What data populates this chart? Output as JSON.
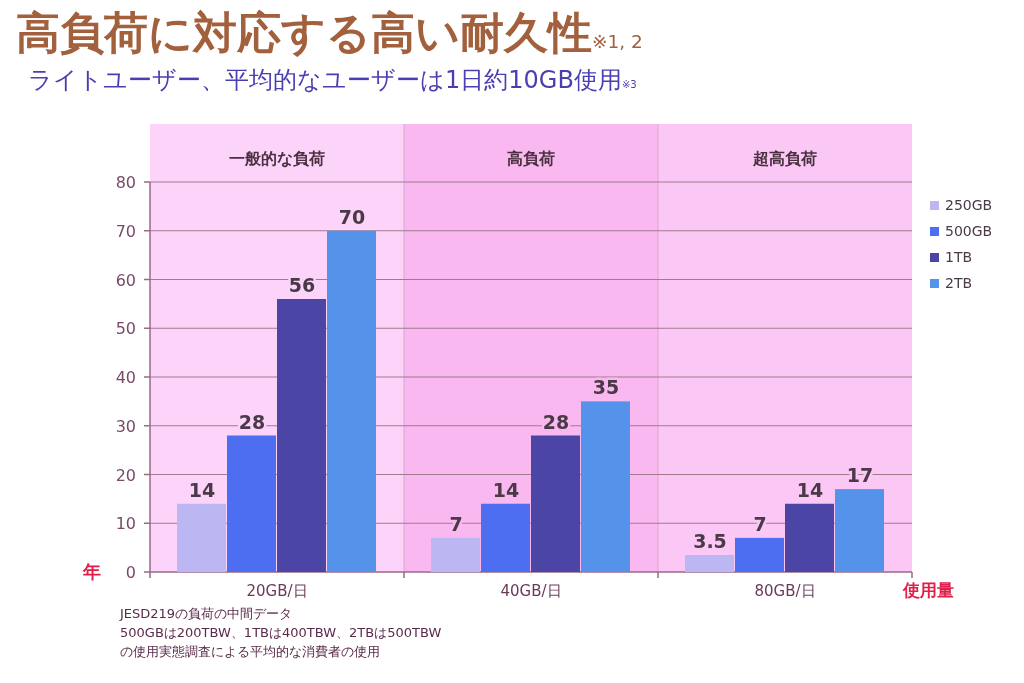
{
  "chart_data": {
    "type": "bar",
    "title": "高負荷に対応する高い耐久性$_{※1, 2}$",
    "subtitle": "ライトユーザー、平均的なユーザーは1日約10GB使用$_{※3}$",
    "xlabel": "使用量",
    "ylabel": "年",
    "categories": [
      "20GB/日",
      "40GB/日",
      "80GB/日"
    ],
    "series": [
      {
        "name": "250GB",
        "color": "#bcb6f2",
        "values": [
          14,
          7,
          3.5
        ]
      },
      {
        "name": "500GB",
        "color": "#4d6ef0",
        "values": [
          28,
          14,
          7
        ]
      },
      {
        "name": "1TB",
        "color": "#4b45a6",
        "values": [
          56,
          28,
          14
        ]
      },
      {
        "name": "2TB",
        "color": "#5592ea",
        "values": [
          70,
          35,
          17
        ]
      }
    ],
    "ylim": [
      0,
      80
    ],
    "yticks": [
      0,
      10,
      20,
      30,
      40,
      50,
      60,
      70,
      80
    ],
    "grid": "y",
    "legend": "right",
    "data_labels": true,
    "bands": [
      {
        "axis": "x",
        "from": "20GB/日",
        "to": "20GB/日",
        "label": "一般的な負荷",
        "color": "#fcd4fa"
      },
      {
        "axis": "x",
        "from": "40GB/日",
        "to": "40GB/日",
        "label": "高負荷",
        "color": "#f9b8ef"
      },
      {
        "axis": "x",
        "from": "80GB/日",
        "to": "80GB/日",
        "label": "超高負荷",
        "color": "#fbc8f5"
      }
    ],
    "annotations": [
      "JESD219の負荷の中間データ",
      "500GBは200TBW、1TBは400TBW、2TBは500TBW",
      "の使用実態調査による平均的な消費者の使用"
    ]
  }
}
